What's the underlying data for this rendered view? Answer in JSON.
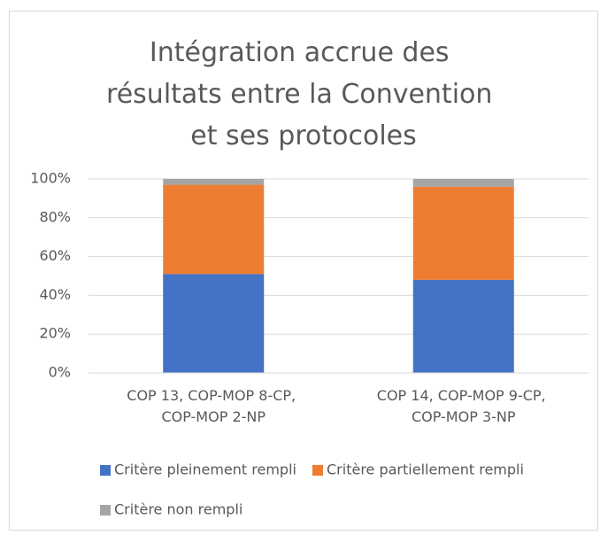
{
  "chart_data": {
    "type": "stacked_bar",
    "title": "Intégration accrue des résultats entre la Convention et ses protocoles",
    "categories": [
      "COP 13, COP-MOP 8-CP, COP-MOP 2-NP",
      "COP 14, COP-MOP 9-CP, COP-MOP 3-NP"
    ],
    "series": [
      {
        "name": "Critère pleinement rempli",
        "color": "#4472c4",
        "values": [
          51,
          48
        ]
      },
      {
        "name": "Critère partiellement rempli",
        "color": "#ed7d31",
        "values": [
          46,
          48
        ]
      },
      {
        "name": "Critère non rempli",
        "color": "#a5a5a5",
        "values": [
          3,
          4
        ]
      }
    ],
    "ylim": [
      0,
      100
    ],
    "yticks": [
      {
        "value": 0,
        "label": "0%"
      },
      {
        "value": 20,
        "label": "20%"
      },
      {
        "value": 40,
        "label": "40%"
      },
      {
        "value": 60,
        "label": "60%"
      },
      {
        "value": 80,
        "label": "80%"
      },
      {
        "value": 100,
        "label": "100%"
      }
    ],
    "grid": true,
    "legend": "bottom"
  }
}
